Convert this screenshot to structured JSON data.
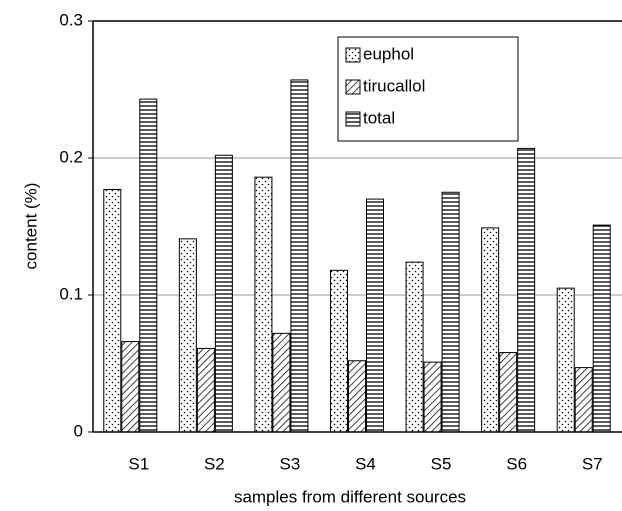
{
  "chart_data": {
    "type": "bar",
    "xlabel": "samples from different sources",
    "ylabel": "content (%)",
    "categories": [
      "S1",
      "S2",
      "S3",
      "S4",
      "S5",
      "S6",
      "S7"
    ],
    "series": [
      {
        "name": "euphol",
        "color": "#000000",
        "pattern": "dots",
        "values": [
          0.177,
          0.141,
          0.186,
          0.118,
          0.124,
          0.149,
          0.105
        ]
      },
      {
        "name": "tirucallol",
        "color": "#000000",
        "pattern": "diagonal",
        "values": [
          0.066,
          0.061,
          0.072,
          0.052,
          0.051,
          0.058,
          0.047
        ]
      },
      {
        "name": "total",
        "color": "#000000",
        "pattern": "horizontal",
        "values": [
          0.243,
          0.202,
          0.257,
          0.17,
          0.175,
          0.207,
          0.151
        ]
      }
    ],
    "ylim": [
      0,
      0.3
    ],
    "yticks": [
      0,
      0.1,
      0.2,
      0.3
    ],
    "grid": true,
    "legend": "top-right"
  }
}
